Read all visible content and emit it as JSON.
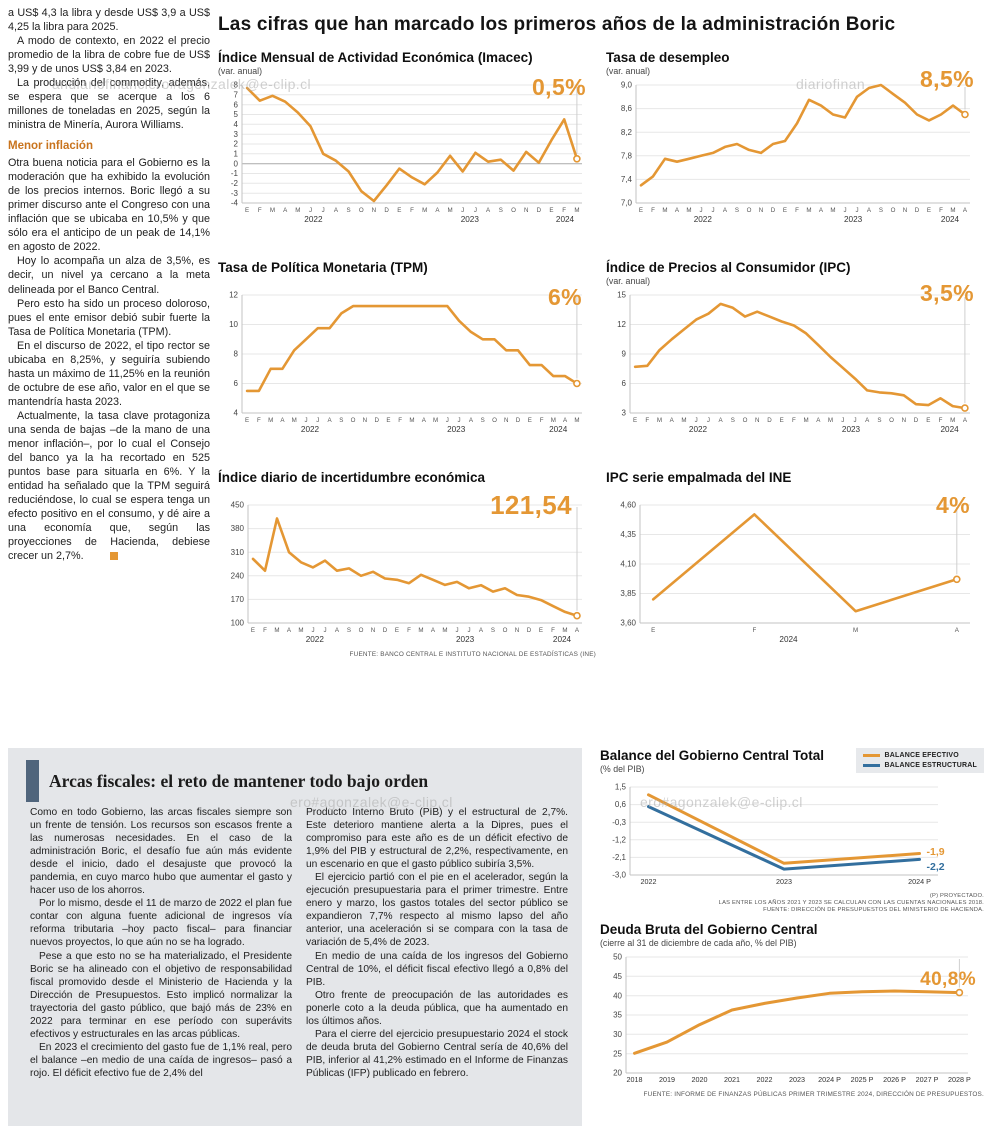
{
  "page": {
    "title": "Las cifras que han marcado los primeros años de la administración Boric",
    "watermarks": [
      "andiariofinanciero#agonzalek@e-clip.cl",
      "diariofinan",
      "ero#agonzalek@e-clip.cl",
      "ero#agonzalek@e-clip.cl"
    ],
    "colors": {
      "accent_orange": "#E49734",
      "structural_blue": "#336F9E",
      "panel_gray": "#E4E6E9",
      "accent_bar_blue": "#50657C",
      "subhead_orange": "#C9741E"
    }
  },
  "left_article": {
    "intro_paragraphs": [
      "a US$ 4,3 la libra y desde US$ 3,9 a US$ 4,25 la libra para 2025.",
      "A modo de contexto, en 2022 el precio promedio de la libra de cobre fue de US$ 3,99 y de unos US$ 3,84 en 2023.",
      "La producción del commodity, además, se espera que se acerque a los 6 millones de toneladas en 2025, según la ministra de Minería, Aurora Williams."
    ],
    "subhead": "Menor inflación",
    "paragraphs": [
      "Otra buena noticia para el Gobierno es la moderación que ha exhibido la evolución de los precios internos. Boric llegó a su primer discurso ante el Congreso con una inflación que se ubicaba en 10,5% y que sólo era el anticipo de un peak de 14,1% en agosto de 2022.",
      "Hoy lo acompaña un alza de 3,5%, es decir, un nivel ya cercano a la meta delineada por el Banco Central.",
      "Pero esto ha sido un proceso doloroso, pues el ente emisor debió subir fuerte la Tasa de Política Monetaria (TPM).",
      "En el discurso de 2022, el tipo rector se ubicaba en 8,25%, y seguiría subiendo hasta un máximo de 11,25% en la reunión de octubre de ese año, valor en el que se mantendría hasta 2023.",
      "Actualmente, la tasa clave protagoniza una senda de bajas –de la mano de una menor inflación–, por lo cual el Consejo del banco ya la ha recortado en 525 puntos base para situarla en 6%. Y la entidad ha señalado que la TPM seguirá reduciéndose, lo cual se espera tenga un efecto positivo en el consumo, y dé aire a una economía que, según las proyecciones de Hacienda, debiese crecer un 2,7%."
    ]
  },
  "fiscal": {
    "title": "Arcas fiscales: el reto de mantener todo bajo orden",
    "col1": [
      "Como en todo Gobierno, las arcas fiscales siempre son un frente de tensión. Los recursos son escasos frente a las numerosas necesidades. En el caso de la administración Boric, el desafío fue aún más evidente desde el inicio, dado el desajuste que provocó la pandemia, en cuyo marco hubo que aumentar el gasto y hacer uso de los ahorros.",
      "Por lo mismo, desde el 11 de marzo de 2022 el plan fue contar con alguna fuente adicional de ingresos vía reforma tributaria –hoy pacto fiscal– para financiar nuevos proyectos, lo que aún no se ha logrado.",
      "Pese a que esto no se ha materializado, el Presidente Boric se ha alineado con el objetivo de responsabilidad fiscal promovido desde el Ministerio de Hacienda y la Dirección de Presupuestos. Esto implicó normalizar la trayectoria del gasto público, que bajó más de 23% en 2022 para terminar en ese período con superávits efectivos y estructurales en las arcas públicas.",
      "En 2023 el crecimiento del gasto fue de 1,1% real, pero el balance –en medio de una caída de ingresos– pasó a rojo. El déficit efectivo fue de 2,4% del"
    ],
    "col2": [
      "Producto Interno Bruto (PIB) y el estructural de 2,7%. Este deterioro mantiene alerta a la Dipres, pues el compromiso para este año es de un déficit efectivo de 1,9% del PIB y estructural de 2,2%, respectivamente, en un escenario en que el gasto público subiría 3,5%.",
      "El ejercicio partió con el pie en el acelerador, según la ejecución presupuestaria para el primer trimestre. Entre enero y marzo, los gastos totales del sector público se expandieron 7,7% respecto al mismo lapso del año anterior, una aceleración si se compara con la tasa de variación de 5,4% de 2023.",
      "En medio de una caída de los ingresos del Gobierno Central de 10%, el déficit fiscal efectivo llegó a 0,8% del PIB.",
      "Otro frente de preocupación de las autoridades es ponerle coto a la deuda pública, que ha aumentado en los últimos años.",
      "Para el cierre del ejercicio presupuestario 2024 el stock de deuda bruta del Gobierno Central sería de 40,6% del PIB, inferior al 41,2% estimado en el Informe de Finanzas Públicas (IFP) publicado en febrero."
    ]
  },
  "chart_data": [
    {
      "type": "line",
      "title": "Índice Mensual de Actividad Económica (Imacec)",
      "subtitle": "(var. anual)",
      "big": "0,5%",
      "ylim": [
        -4,
        8
      ],
      "yticks": [
        8,
        7,
        6,
        5,
        4,
        3,
        2,
        1,
        0,
        -1,
        -2,
        -3,
        -4
      ],
      "xlabels": [
        "E",
        "F",
        "M",
        "A",
        "M",
        "J",
        "J",
        "A",
        "S",
        "O",
        "N",
        "D",
        "E",
        "F",
        "M",
        "A",
        "M",
        "J",
        "J",
        "A",
        "S",
        "O",
        "N",
        "D",
        "E",
        "F",
        "M"
      ],
      "years": [
        {
          "label": "2022",
          "f": 0.21
        },
        {
          "label": "2023",
          "f": 0.67
        },
        {
          "label": "2024",
          "f": 0.95
        }
      ],
      "zero": true,
      "endline": true,
      "m": {
        "l": 24
      },
      "series": [
        {
          "name": "Imacec var. anual",
          "color": "#E49734",
          "values": [
            7.7,
            6.4,
            6.9,
            6.3,
            5.2,
            3.8,
            1.0,
            0.3,
            -0.8,
            -2.8,
            -3.8,
            -2.2,
            -0.5,
            -1.4,
            -2.1,
            -0.9,
            0.8,
            -0.8,
            1.1,
            0.2,
            0.4,
            -0.7,
            1.2,
            0.1,
            2.4,
            4.5,
            0.5
          ]
        }
      ]
    },
    {
      "type": "line",
      "title": "Tasa de desempleo",
      "subtitle": "(var. anual)",
      "big": "8,5%",
      "ylim": [
        7.0,
        9.0
      ],
      "yticks": [
        9.0,
        8.6,
        8.2,
        7.8,
        7.4,
        7.0
      ],
      "ylabels": [
        "9,0",
        "8,6",
        "8,2",
        "7,8",
        "7,4",
        "7,0"
      ],
      "xlabels": [
        "E",
        "F",
        "M",
        "A",
        "M",
        "J",
        "J",
        "A",
        "S",
        "O",
        "N",
        "D",
        "E",
        "F",
        "M",
        "A",
        "M",
        "J",
        "J",
        "A",
        "S",
        "O",
        "N",
        "D",
        "E",
        "F",
        "M",
        "A"
      ],
      "years": [
        {
          "label": "2022",
          "f": 0.2
        },
        {
          "label": "2023",
          "f": 0.65
        },
        {
          "label": "2024",
          "f": 0.94
        }
      ],
      "endline": true,
      "m": {
        "l": 30
      },
      "series": [
        {
          "name": "Tasa de desempleo",
          "color": "#E49734",
          "values": [
            7.3,
            7.45,
            7.75,
            7.7,
            7.75,
            7.8,
            7.85,
            7.95,
            8.0,
            7.9,
            7.85,
            8.0,
            8.05,
            8.35,
            8.75,
            8.65,
            8.5,
            8.45,
            8.8,
            8.95,
            9.0,
            8.85,
            8.7,
            8.5,
            8.4,
            8.5,
            8.65,
            8.5
          ]
        }
      ]
    },
    {
      "type": "line",
      "title": "Tasa de Política Monetaria (TPM)",
      "subtitle": "",
      "big": "6%",
      "ylim": [
        4,
        12
      ],
      "yticks": [
        12,
        10,
        8,
        6,
        4
      ],
      "xlabels": [
        "E",
        "F",
        "M",
        "A",
        "M",
        "J",
        "J",
        "A",
        "S",
        "O",
        "N",
        "D",
        "E",
        "F",
        "M",
        "A",
        "M",
        "J",
        "J",
        "A",
        "S",
        "O",
        "N",
        "D",
        "E",
        "F",
        "M",
        "A",
        "M"
      ],
      "years": [
        {
          "label": "2022",
          "f": 0.2
        },
        {
          "label": "2023",
          "f": 0.63
        },
        {
          "label": "2024",
          "f": 0.93
        }
      ],
      "endline": true,
      "m": {
        "l": 24
      },
      "series": [
        {
          "name": "TPM",
          "color": "#E49734",
          "values": [
            5.5,
            5.5,
            7.0,
            7.0,
            8.25,
            9.0,
            9.75,
            9.75,
            10.75,
            11.25,
            11.25,
            11.25,
            11.25,
            11.25,
            11.25,
            11.25,
            11.25,
            11.25,
            10.25,
            9.5,
            9.0,
            9.0,
            8.25,
            8.25,
            7.25,
            7.25,
            6.5,
            6.5,
            6.0
          ]
        }
      ]
    },
    {
      "type": "line",
      "title": "Índice de Precios al Consumidor (IPC)",
      "subtitle": "(var. anual)",
      "big": "3,5%",
      "ylim": [
        3,
        15
      ],
      "yticks": [
        15,
        12,
        9,
        6,
        3
      ],
      "xlabels": [
        "E",
        "F",
        "M",
        "A",
        "M",
        "J",
        "J",
        "A",
        "S",
        "O",
        "N",
        "D",
        "E",
        "F",
        "M",
        "A",
        "M",
        "J",
        "J",
        "A",
        "S",
        "O",
        "N",
        "D",
        "E",
        "F",
        "M",
        "A"
      ],
      "years": [
        {
          "label": "2022",
          "f": 0.2
        },
        {
          "label": "2023",
          "f": 0.65
        },
        {
          "label": "2024",
          "f": 0.94
        }
      ],
      "endline": true,
      "m": {
        "l": 24
      },
      "series": [
        {
          "name": "IPC var. anual",
          "color": "#E49734",
          "values": [
            7.7,
            7.8,
            9.4,
            10.5,
            11.5,
            12.5,
            13.1,
            14.1,
            13.7,
            12.8,
            13.3,
            12.8,
            12.3,
            11.9,
            11.1,
            9.9,
            8.7,
            7.6,
            6.5,
            5.3,
            5.1,
            5.0,
            4.8,
            3.9,
            3.8,
            4.5,
            3.7,
            3.5
          ]
        }
      ]
    },
    {
      "type": "line",
      "title": "Índice diario de incertidumbre económica",
      "subtitle": "",
      "big": "121,54",
      "ylim": [
        100,
        450
      ],
      "yticks": [
        450,
        380,
        310,
        240,
        170,
        100
      ],
      "xlabels": [
        "E",
        "F",
        "M",
        "A",
        "M",
        "J",
        "J",
        "A",
        "S",
        "O",
        "N",
        "D",
        "E",
        "F",
        "M",
        "A",
        "M",
        "J",
        "J",
        "A",
        "S",
        "O",
        "N",
        "D",
        "E",
        "F",
        "M",
        "A"
      ],
      "years": [
        {
          "label": "2022",
          "f": 0.2
        },
        {
          "label": "2023",
          "f": 0.65
        },
        {
          "label": "2024",
          "f": 0.94
        }
      ],
      "endline": true,
      "m": {
        "l": 30
      },
      "source": "FUENTE: BANCO CENTRAL E INSTITUTO NACIONAL DE ESTADÍSTICAS (INE)",
      "series": [
        {
          "name": "Incertidumbre económica",
          "color": "#E49734",
          "values": [
            290,
            255,
            410,
            310,
            280,
            265,
            285,
            255,
            262,
            240,
            252,
            232,
            228,
            218,
            243,
            228,
            213,
            222,
            203,
            212,
            193,
            203,
            183,
            178,
            168,
            150,
            133,
            121.54
          ]
        }
      ]
    },
    {
      "type": "line",
      "title": "IPC serie empalmada del INE",
      "subtitle": "",
      "big": "4%",
      "ylim": [
        3.6,
        4.6
      ],
      "yticks": [
        4.6,
        4.35,
        4.1,
        3.85,
        3.6
      ],
      "ylabels": [
        "4,60",
        "4,35",
        "4,10",
        "3,85",
        "3,60"
      ],
      "xlabels": [
        "E",
        "F",
        "M",
        "A"
      ],
      "years": [
        {
          "label": "2024",
          "f": 0.45
        }
      ],
      "pad": 0.04,
      "endline": true,
      "m": {
        "l": 34
      },
      "series": [
        {
          "name": "IPC serie empalmada",
          "color": "#E49734",
          "values": [
            3.8,
            4.52,
            3.7,
            3.97
          ]
        }
      ]
    },
    {
      "type": "line",
      "title": "Balance del Gobierno Central Total",
      "subtitle": "(% del PIB)",
      "ylim": [
        -3.0,
        1.5
      ],
      "yticks": [
        1.5,
        0.6,
        -0.3,
        -1.2,
        -2.1,
        -3.0
      ],
      "ylabels": [
        "1,5",
        "0,6",
        "-0,3",
        "-1,2",
        "-2,1",
        "-3,0"
      ],
      "xlabels": [
        "2022",
        "2023",
        "2024 P"
      ],
      "xl": "xtb",
      "pad": 0.06,
      "m": {
        "l": 30,
        "r": 46,
        "t": 8,
        "b": 16
      },
      "series": [
        {
          "name": "BALANCE EFECTIVO",
          "color": "#E49734",
          "w": 3,
          "values": [
            1.1,
            -2.4,
            -1.9
          ],
          "end_label": "-1,9",
          "end_dy": -2,
          "marker": false
        },
        {
          "name": "BALANCE ESTRUCTURAL",
          "color": "#336F9E",
          "w": 3,
          "values": [
            0.5,
            -2.7,
            -2.2
          ],
          "end_label": "-2,2",
          "end_dy": 7,
          "marker": false
        }
      ],
      "footnotes": [
        "(P) PROYECTADO.",
        "LAS ENTRE LOS AÑOS 2021 Y 2023 SE CALCULAN CON LAS CUENTAS NACIONALES 2018.",
        "FUENTE: DIRECCIÓN DE PRESUPUESTOS DEL MINISTERIO DE HACIENDA."
      ]
    },
    {
      "type": "line",
      "title": "Deuda Bruta del Gobierno Central",
      "subtitle": "(cierre al 31 de diciembre de cada año, % del PIB)",
      "big": "40,8%",
      "ylim": [
        20,
        50
      ],
      "yticks": [
        50,
        45,
        40,
        35,
        30,
        25,
        20
      ],
      "xlabels": [
        "2018",
        "2019",
        "2020",
        "2021",
        "2022",
        "2023",
        "2024 P",
        "2025 P",
        "2026 P",
        "2027 P",
        "2028 P"
      ],
      "xl": "xtb",
      "pad": 0.025,
      "endline": true,
      "m": {
        "l": 26,
        "r": 16,
        "t": 8,
        "b": 16
      },
      "source": "FUENTE: INFORME DE FINANZAS PÚBLICAS PRIMER TRIMESTRE 2024, DIRECCIÓN DE PRESUPUESTOS.",
      "series": [
        {
          "name": "Deuda bruta",
          "color": "#E49734",
          "w": 3,
          "values": [
            25.1,
            28.0,
            32.5,
            36.3,
            38.0,
            39.4,
            40.6,
            41.0,
            41.2,
            41.0,
            40.8
          ]
        }
      ]
    }
  ]
}
